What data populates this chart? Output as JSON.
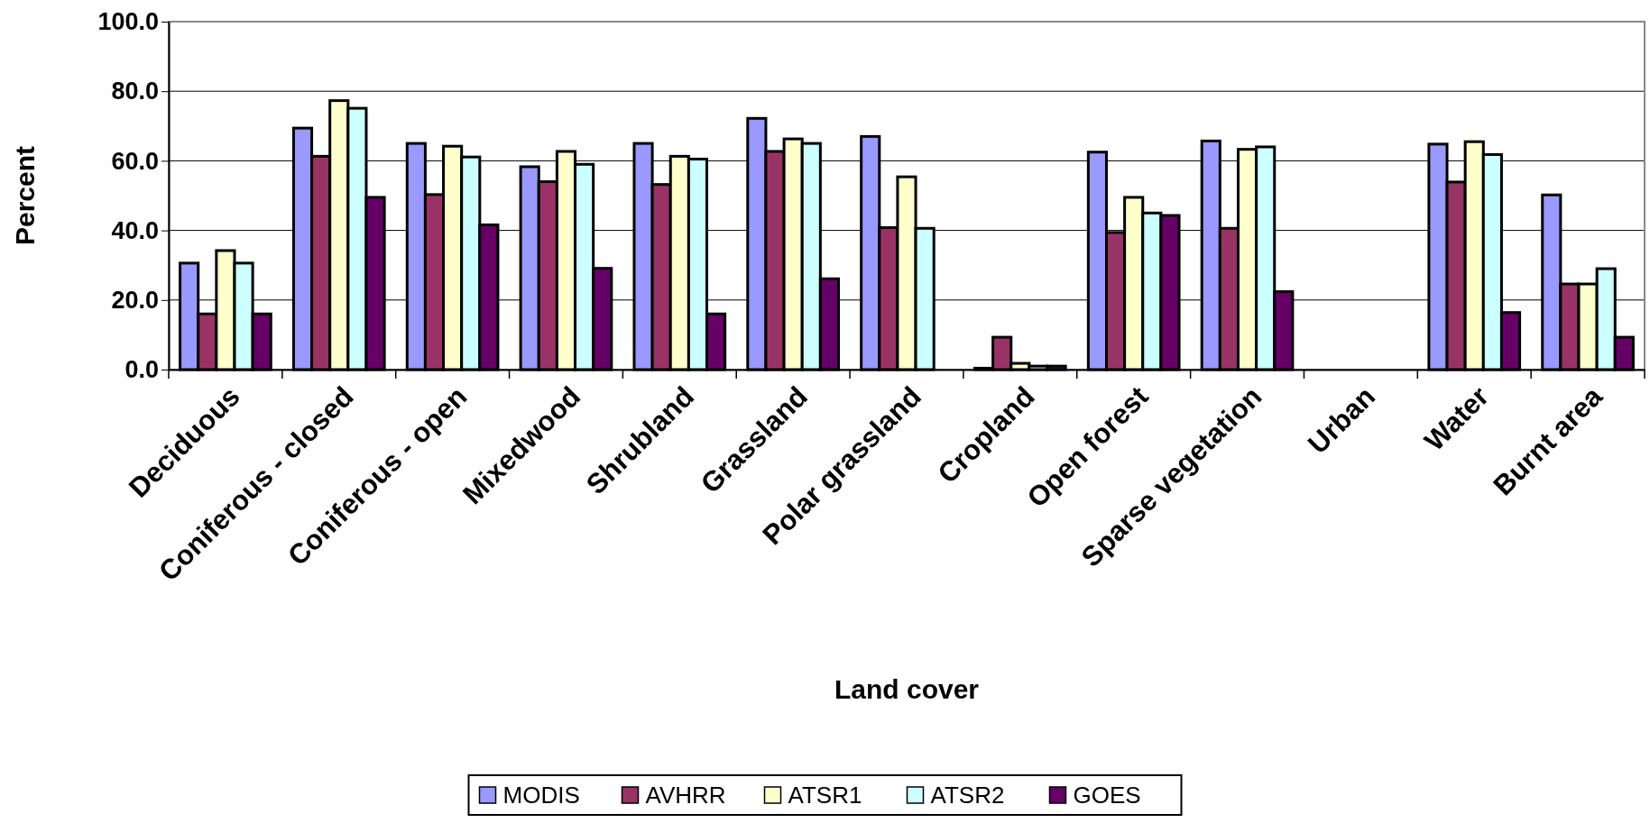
{
  "chart_data": {
    "type": "bar",
    "xlabel": "Land cover",
    "ylabel": "Percent",
    "categories": [
      "Deciduous",
      "Coniferous - closed",
      "Coniferous - open",
      "Mixedwood",
      "Shrubland",
      "Grassland",
      "Polar grassland",
      "Cropland",
      "Open forest",
      "Sparse vegetation",
      "Urban",
      "Water",
      "Burnt area"
    ],
    "series": [
      {
        "name": "MODIS",
        "color": "#9999ff",
        "values": [
          30.6,
          69.4,
          65.0,
          58.3,
          65.0,
          72.2,
          67.0,
          0.4,
          62.5,
          65.7,
          0,
          64.8,
          50.2
        ]
      },
      {
        "name": "AVHRR",
        "color": "#993366",
        "values": [
          16.0,
          61.3,
          50.3,
          54.0,
          53.2,
          62.7,
          40.8,
          9.3,
          39.4,
          40.6,
          0,
          53.9,
          24.6
        ]
      },
      {
        "name": "ATSR1",
        "color": "#ffffcc",
        "values": [
          34.2,
          77.3,
          64.2,
          62.7,
          61.3,
          66.3,
          55.4,
          1.8,
          49.5,
          63.3,
          0,
          65.5,
          24.6
        ]
      },
      {
        "name": "ATSR2",
        "color": "#ccffff",
        "values": [
          30.6,
          75.1,
          61.1,
          59.0,
          60.5,
          65.0,
          40.6,
          1.0,
          45.0,
          64.0,
          0,
          61.8,
          29.0
        ]
      },
      {
        "name": "GOES",
        "color": "#660066",
        "values": [
          16.0,
          49.5,
          41.6,
          29.1,
          16.0,
          26.1,
          0,
          1.0,
          44.3,
          22.4,
          0,
          16.4,
          9.3
        ]
      }
    ],
    "ylim": [
      0,
      100
    ],
    "yticks": [
      {
        "value": 0,
        "label": "0.0"
      },
      {
        "value": 20,
        "label": "20.0"
      },
      {
        "value": 40,
        "label": "40.0"
      },
      {
        "value": 60,
        "label": "60.0"
      },
      {
        "value": 80,
        "label": "80.0"
      },
      {
        "value": 100,
        "label": "100.0"
      }
    ],
    "grid": "y",
    "legend": "bottom"
  }
}
